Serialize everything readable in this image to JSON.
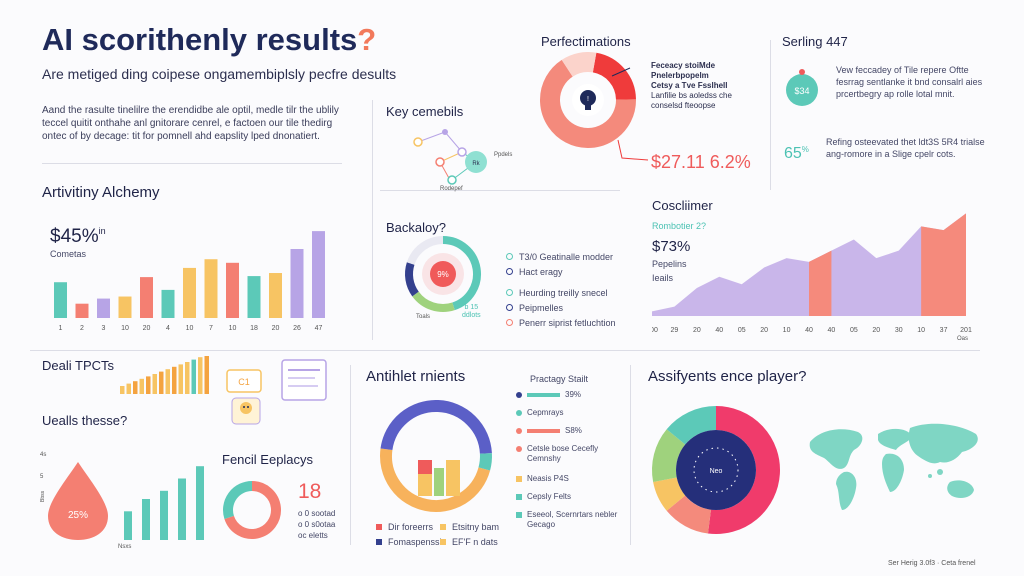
{
  "header": {
    "title": "AI scorithenly results",
    "title_mark": "?",
    "subtitle": "Are metiged ding coipese ongamembiplsly pecfre desults",
    "intro": "Aand the rasulte tinelilre the erendidbe ale optil, medle tilr the ublily teccel quitit onthahe anl gnitorare cenrel, e factoen our tile thedirg ontec of by decage: tit for pomnell ahd eapslity lped dnonatiert."
  },
  "activity": {
    "title": "Artivitiny Alchemy",
    "value": "$45%",
    "value_sup": "in",
    "caption": "Cometas",
    "chart_data": {
      "type": "bar",
      "title": "",
      "categories": [
        "1",
        "2",
        "3",
        "10",
        "20",
        "4",
        "10",
        "7",
        "10",
        "18",
        "20",
        "26",
        "47"
      ],
      "values": [
        70,
        28,
        38,
        42,
        80,
        55,
        98,
        115,
        108,
        82,
        88,
        135,
        170
      ],
      "colors": [
        "#5cc9b8",
        "#f47f72",
        "#b7a4e6",
        "#f7c463",
        "#f47f72",
        "#5cc9b8",
        "#f7c463",
        "#f7c463",
        "#f47f72",
        "#5cc9b8",
        "#f7c463",
        "#b7a4e6",
        "#b7a4e6"
      ],
      "ylim": [
        0,
        180
      ]
    }
  },
  "key": {
    "title": "Key cemebils",
    "node_labels": [
      "Ppdels",
      "Rodepef"
    ],
    "center_label": "Rk"
  },
  "backaloy": {
    "title": "Backaloy?",
    "center_value": "9%",
    "bottom_left": "Toals",
    "bottom_right_1": "b 15",
    "bottom_right_2": "ddlots",
    "legend": [
      {
        "label": "T3/0 Geatinalle modder",
        "color": "#5cc9b8"
      },
      {
        "label": "Hact eragy",
        "color": "#34408e"
      },
      {
        "label": "Heurding treilly snecel",
        "color": "#5cc9b8"
      },
      {
        "label": "Peipmelles",
        "color": "#34408e"
      },
      {
        "label": "Penerr siprist fetluchtion",
        "color": "#f47f72"
      }
    ],
    "chart_data": {
      "type": "pie",
      "title": "",
      "categories": [
        "a",
        "b",
        "c",
        "d"
      ],
      "values": [
        45,
        20,
        15,
        20
      ],
      "colors": [
        "#5cc9b8",
        "#9fd27d",
        "#34408e",
        "#e9e9f2"
      ]
    }
  },
  "perfect": {
    "title": "Perfectimations",
    "notes": [
      "Feceacy stoiMde",
      "Pnelerbpopelm",
      "Cetsy a Tve Fsslhell",
      "Lanfilie bs aoledss che",
      "conselsd fteoopse"
    ],
    "value_1": "$27.11",
    "value_2": "6.2%",
    "chart_data": {
      "type": "pie",
      "title": "",
      "categories": [
        "red",
        "salmon",
        "light"
      ],
      "values": [
        22,
        66,
        12
      ],
      "colors": [
        "#ef3b3b",
        "#f48a7c",
        "#fbd3cb"
      ]
    }
  },
  "serling": {
    "title": "Serling 447",
    "badge_value": "$34",
    "text_1": "Vew feccadey of Tile repere Oftte fesrrag sentlanke it bnd consalrl aies prcertbegry ap rolle lotal mnit.",
    "stat": "65",
    "stat_sup": "%",
    "text_2": "Refing osteevated thet ldt3S 5R4 trialse ang-romore in a Slige cpelr cots."
  },
  "cosclimmer": {
    "title": "Coscliimer",
    "subtitle": "Rombotier 2?",
    "value": "$73%",
    "caption_1": "Pepelins",
    "caption_2": "Ieails",
    "chart_data": {
      "type": "area",
      "title": "",
      "x": [
        "100",
        "29",
        "20",
        "40",
        "05",
        "20",
        "10",
        "40",
        "40",
        "05",
        "20",
        "30",
        "10",
        "37",
        "201"
      ],
      "values": [
        5,
        10,
        30,
        42,
        34,
        52,
        62,
        58,
        70,
        82,
        62,
        70,
        96,
        92,
        110
      ],
      "highlight_ranges": [
        [
          7,
          8
        ],
        [
          12,
          14
        ]
      ],
      "ylim": [
        0,
        120
      ],
      "y_ticks": [
        "",
        "",
        "",
        ""
      ],
      "x_end_label": "1901",
      "x_end_sub": "Oas"
    }
  },
  "deal": {
    "title": "Deali TPCTs",
    "box_label": "C1"
  },
  "uealls": {
    "title": "Uealls thesse?",
    "drop_value": "25%",
    "axis_top": "4s",
    "axis_mid": "5",
    "axis_label": "Bbss",
    "bottom_label": "Nsxs",
    "chart_data": {
      "type": "bar",
      "title": "",
      "categories": [
        "1",
        "2",
        "3",
        "4",
        "5"
      ],
      "values": [
        35,
        50,
        60,
        75,
        90
      ],
      "ylim": [
        0,
        100
      ]
    }
  },
  "fencil": {
    "title": "Fencil Eeplacys",
    "value": "18",
    "notes": [
      "o 0 sootad",
      "o 0 s0otaa",
      "oc eletts"
    ],
    "chart_data": {
      "type": "pie",
      "title": "",
      "categories": [
        "a",
        "b"
      ],
      "values": [
        70,
        30
      ],
      "colors": [
        "#f47f72",
        "#5cc9b8"
      ]
    }
  },
  "antihlet": {
    "title": "Antihlet rnients",
    "legend": [
      {
        "label": "Dir foreerrs",
        "color": "#ef5b5b"
      },
      {
        "label": "Etsitny bam",
        "color": "#f7c463"
      },
      {
        "label": "Fomaspenssl",
        "color": "#34408e"
      },
      {
        "label": "EF'F n dats",
        "color": "#f7c463"
      }
    ],
    "chart_data": {
      "type": "pie",
      "title": "",
      "categories": [
        "orange",
        "purple",
        "teal"
      ],
      "values": [
        48,
        47,
        5
      ],
      "colors": [
        "#f7b25c",
        "#5b5fc7",
        "#5cc9b8"
      ]
    }
  },
  "practagy": {
    "title": "Practagy Stailt",
    "rows": [
      {
        "label": "39%",
        "bar": 0.55,
        "color": "#5cc9b8",
        "marker": "dot",
        "mcolor": "#34408e"
      },
      {
        "label": "Cepmrays",
        "bar": 0,
        "color": "#5cc9b8",
        "marker": "dot",
        "mcolor": "#5cc9b8"
      },
      {
        "label": "S8%",
        "bar": 0.55,
        "color": "#f47f72",
        "marker": "dot",
        "mcolor": "#f47f72"
      },
      {
        "label": "Cetsle bose Cecefly Cemnshy",
        "bar": 0,
        "color": "#f47f72",
        "marker": "dot",
        "mcolor": "#f47f72"
      },
      {
        "label": "Neasis P4S",
        "bar": 0,
        "color": "#f7c463",
        "marker": "sq",
        "mcolor": "#f7c463"
      },
      {
        "label": "Cepsly Felts",
        "bar": 0,
        "color": "#5cc9b8",
        "marker": "sq",
        "mcolor": "#5cc9b8"
      },
      {
        "label": "Eseeol, Scernrtars nebler Gecago",
        "bar": 0,
        "color": "#5cc9b8",
        "marker": "sq",
        "mcolor": "#5cc9b8"
      }
    ]
  },
  "assify": {
    "title": "Assifyents ence player?",
    "center_label": "Neo",
    "chart_data": {
      "type": "pie",
      "title": "",
      "categories": [
        "pink",
        "salmon",
        "yellow",
        "green",
        "teal"
      ],
      "values": [
        52,
        12,
        8,
        14,
        14
      ],
      "colors": [
        "#f03b6b",
        "#f48a7c",
        "#f7c463",
        "#9fd27d",
        "#5cc9b8"
      ]
    }
  },
  "footer": {
    "text": "Ser Herig 3.0f3 · Ceta frenel"
  }
}
